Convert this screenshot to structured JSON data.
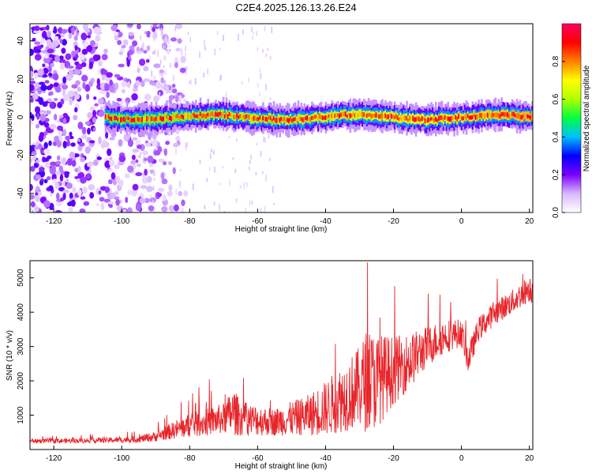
{
  "figure": {
    "title": "C2E4.2025.126.13.26.E24"
  },
  "chart_data": [
    {
      "type": "heatmap",
      "xlabel": "Height of straight line (km)",
      "ylabel": "Frequency (Hz)",
      "xlim": [
        -127,
        21
      ],
      "ylim": [
        -50,
        49
      ],
      "xticks": [
        -120,
        -100,
        -80,
        -60,
        -40,
        -20,
        0,
        20
      ],
      "yticks": [
        -40,
        -20,
        0,
        20,
        40
      ],
      "colorbar": {
        "label": "Normalized spectral amplitude",
        "range": [
          0,
          1
        ],
        "ticks": [
          "0.0",
          "0.2",
          "0.4",
          "0.6",
          "0.8"
        ],
        "colors": [
          "#ffffff",
          "#d9b8ff",
          "#7b00ff",
          "#0000ff",
          "#00c0ff",
          "#00ff40",
          "#b0ff00",
          "#ffff00",
          "#ff8000",
          "#ff0000",
          "#ff0060"
        ]
      },
      "features": {
        "noise_region_x": [
          -127,
          -87
        ],
        "band_center_hz": 0,
        "band_start_x": -105,
        "band_end_x": 21
      },
      "grid": false
    },
    {
      "type": "line",
      "xlabel": "Height of straight line (km)",
      "ylabel": "SNR (10 * v/v)",
      "xlim": [
        -127,
        21
      ],
      "ylim": [
        0,
        5500
      ],
      "xticks": [
        -120,
        -100,
        -80,
        -60,
        -40,
        -20,
        0,
        20
      ],
      "yticks": [
        1000,
        2000,
        3000,
        4000,
        5000
      ],
      "line_color": "#e8252a",
      "grid": false,
      "series": [
        {
          "x": [
            -127,
            -120,
            -110,
            -100,
            -95,
            -90,
            -85,
            -80,
            -75,
            -70,
            -67,
            -65,
            -60,
            -55,
            -50,
            -45,
            -40,
            -35,
            -30,
            -28,
            -25,
            -20,
            -15,
            -10,
            -5,
            0,
            2,
            5,
            10,
            15,
            20,
            21
          ],
          "values": [
            250,
            250,
            260,
            280,
            300,
            380,
            550,
            700,
            800,
            900,
            1100,
            900,
            850,
            800,
            900,
            1000,
            1200,
            1500,
            1800,
            2000,
            2000,
            2300,
            2600,
            3000,
            3300,
            3400,
            2600,
            3500,
            4000,
            4300,
            4700,
            4600
          ],
          "amplitude": [
            60,
            70,
            70,
            80,
            100,
            150,
            250,
            350,
            400,
            450,
            700,
            500,
            450,
            400,
            500,
            600,
            800,
            1000,
            1200,
            1500,
            1400,
            1000,
            800,
            600,
            500,
            400,
            400,
            350,
            350,
            350,
            400,
            400
          ]
        }
      ]
    }
  ]
}
